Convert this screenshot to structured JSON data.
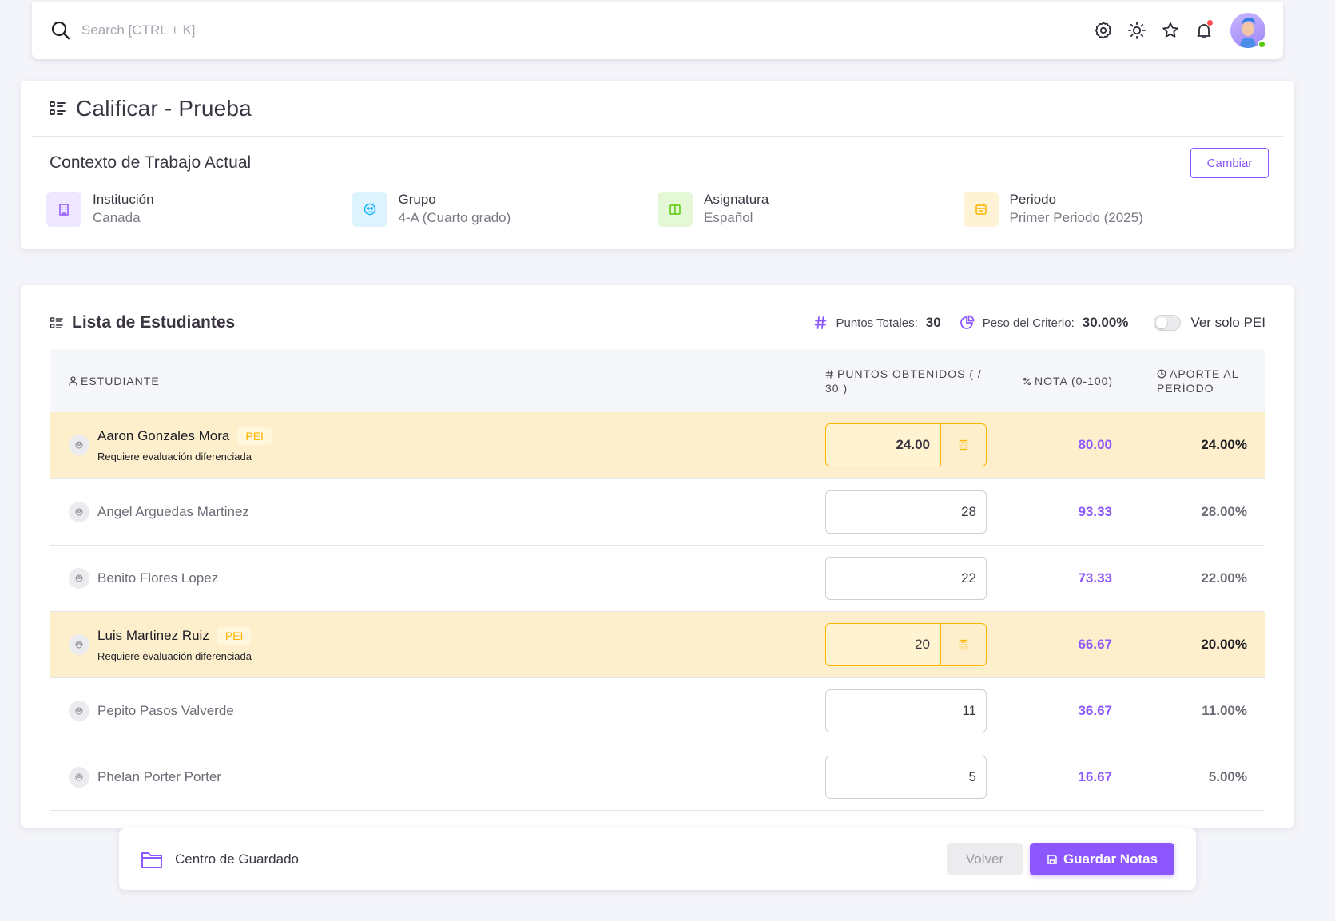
{
  "topbar": {
    "search_placeholder": "Search [CTRL + K]",
    "icons": [
      "settings-icon",
      "sun-icon",
      "star-icon",
      "bell-icon"
    ]
  },
  "page": {
    "title": "Calificar - Prueba"
  },
  "context": {
    "title": "Contexto de Trabajo Actual",
    "change_label": "Cambiar",
    "items": [
      {
        "label": "Institución",
        "value": "Canada",
        "icon": "building-icon",
        "bg": "#efe6ff",
        "color": "#8c57ff"
      },
      {
        "label": "Grupo",
        "value": "4-A (Cuarto grado)",
        "icon": "group-icon",
        "bg": "#ddf4fe",
        "color": "#16b1ff"
      },
      {
        "label": "Asignatura",
        "value": "Español",
        "icon": "book-icon",
        "bg": "#e4f8d8",
        "color": "#56ca00"
      },
      {
        "label": "Periodo",
        "value": "Primer Periodo (2025)",
        "icon": "calendar-icon",
        "bg": "#fff3d6",
        "color": "#ffb400"
      }
    ]
  },
  "students_list": {
    "title": "Lista de Estudiantes",
    "total_points_label": "Puntos Totales:",
    "total_points_value": "30",
    "weight_label": "Peso del Criterio:",
    "weight_value": "30.00%",
    "toggle_label": "Ver solo PEI",
    "toggle_on": false,
    "columns": {
      "student": "Estudiante",
      "points": "Puntos Obtenidos ( / 30 )",
      "grade": "Nota (0-100)",
      "contribution": "Aporte al Período"
    },
    "pei_badge": "PEI",
    "pei_note": "Requiere evaluación diferenciada",
    "rows": [
      {
        "name": "Aaron Gonzales Mora",
        "pei": true,
        "points": "24.00",
        "grade": "80.00",
        "contribution": "24.00%"
      },
      {
        "name": "Angel Arguedas Martinez",
        "pei": false,
        "points": "28",
        "grade": "93.33",
        "contribution": "28.00%"
      },
      {
        "name": "Benito Flores Lopez",
        "pei": false,
        "points": "22",
        "grade": "73.33",
        "contribution": "22.00%"
      },
      {
        "name": "Luis Martinez Ruiz",
        "pei": true,
        "points": "20",
        "grade": "66.67",
        "contribution": "20.00%"
      },
      {
        "name": "Pepito Pasos Valverde",
        "pei": false,
        "points": "11",
        "grade": "36.67",
        "contribution": "11.00%"
      },
      {
        "name": "Phelan Porter Porter",
        "pei": false,
        "points": "5",
        "grade": "16.67",
        "contribution": "5.00%"
      }
    ]
  },
  "savebar": {
    "title": "Centro de Guardado",
    "back_label": "Volver",
    "save_label": "Guardar Notas"
  },
  "colors": {
    "primary": "#8c57ff",
    "warning": "#ffb400",
    "pei_row_bg": "#fdefcc"
  }
}
